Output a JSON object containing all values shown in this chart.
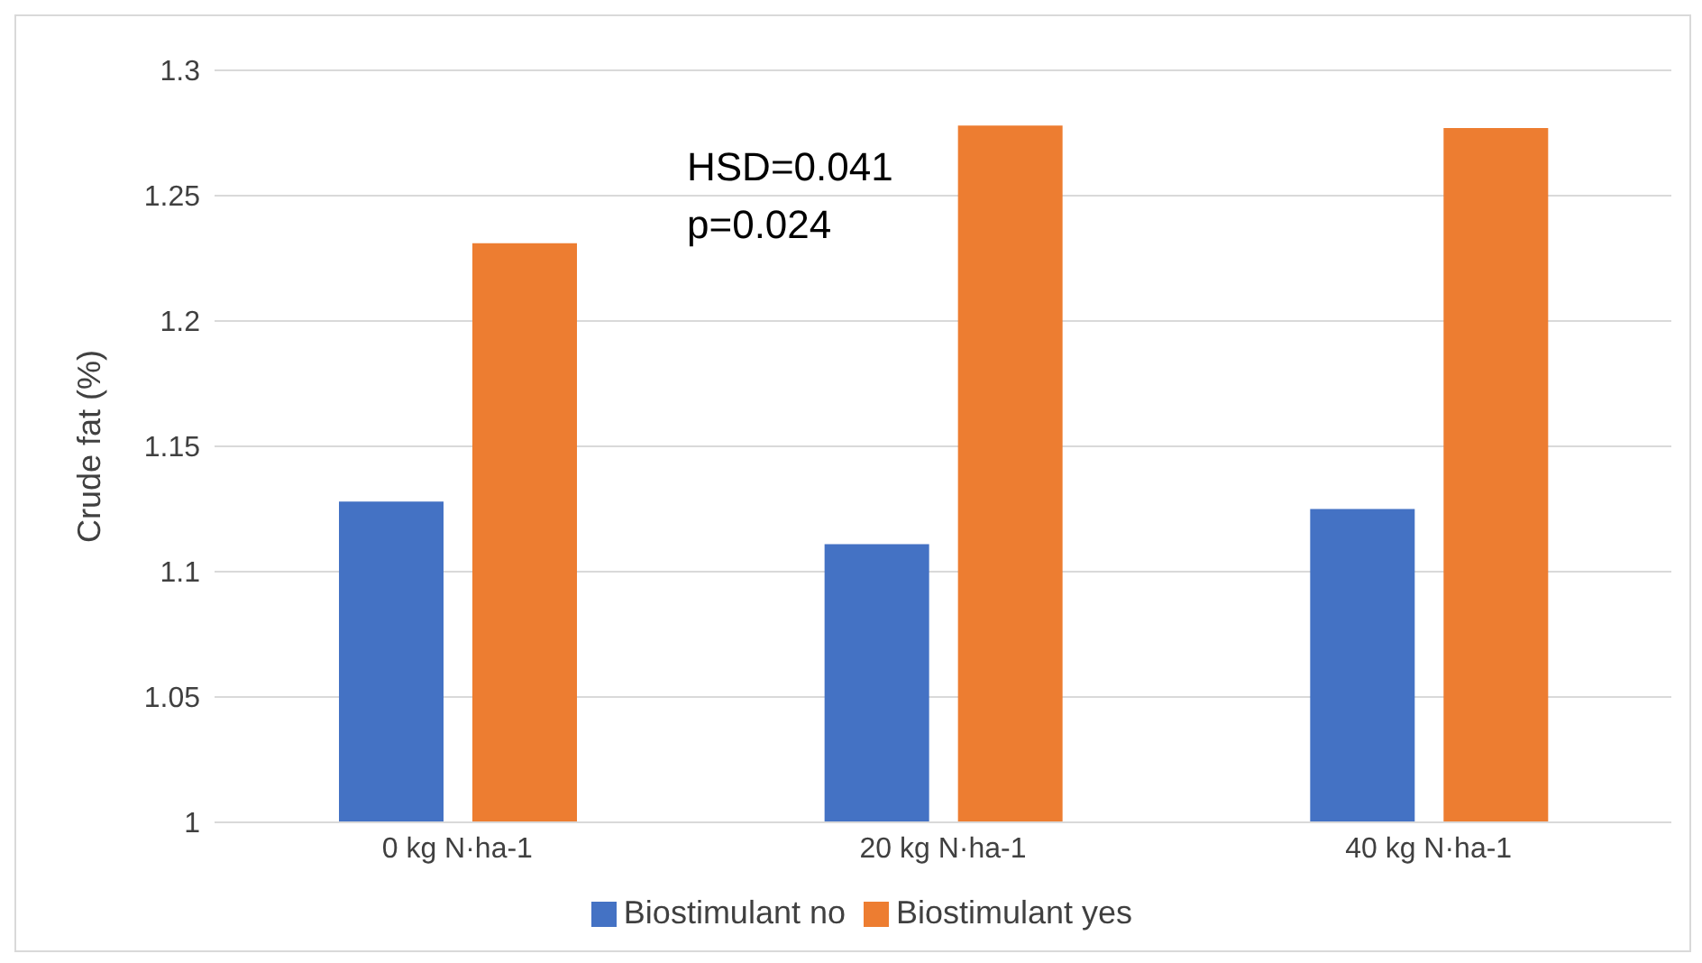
{
  "chart_data": {
    "type": "bar",
    "ylabel": "Crude fat (%)",
    "categories": [
      "0 kg N·ha-1",
      "20 kg N·ha-1",
      "40 kg N·ha-1"
    ],
    "series": [
      {
        "name": "Biostimulant no",
        "color": "#4472c4",
        "values": [
          1.128,
          1.111,
          1.125
        ]
      },
      {
        "name": "Biostimulant yes",
        "color": "#ed7d31",
        "values": [
          1.231,
          1.278,
          1.277
        ]
      }
    ],
    "ylim": [
      1,
      1.3
    ],
    "yticks": [
      1,
      1.05,
      1.1,
      1.15,
      1.2,
      1.25,
      1.3
    ],
    "grid": "y",
    "legend": "bottom",
    "annotations": [
      "HSD=0.041",
      "p=0.024"
    ]
  }
}
